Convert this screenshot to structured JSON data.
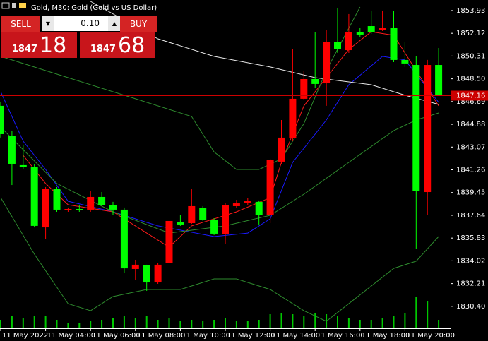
{
  "chart_data": {
    "type": "candlestick",
    "title": "Gold, M30:  Gold (Gold vs US Dollar)",
    "categories": [
      "11 May 2022",
      null,
      null,
      null,
      "11 May 04:00",
      null,
      null,
      null,
      "11 May 06:00",
      null,
      null,
      null,
      "11 May 08:00",
      null,
      null,
      null,
      "11 May 10:00",
      null,
      null,
      null,
      "11 May 12:00",
      null,
      null,
      null,
      "11 May 14:00",
      null,
      null,
      null,
      "11 May 16:00",
      null,
      null,
      null,
      "11 May 18:00",
      null,
      null,
      null,
      "11 May 20:00",
      null,
      null,
      null
    ],
    "open": [
      1846.35,
      1843.93,
      1841.63,
      1841.46,
      1836.68,
      1839.72,
      1838.09,
      1838.14,
      1838.09,
      1839.1,
      1838.48,
      1838.09,
      1833.37,
      1833.65,
      1832.3,
      1833.87,
      1837.13,
      1837.02,
      1838.2,
      1837.3,
      1836.12,
      1838.37,
      1838.65,
      1838.71,
      1837.64,
      1841.91,
      1843.76,
      1846.91,
      1848.48,
      1848.14,
      1851.4,
      1850.78,
      1852.19,
      1852.69,
      1852.41,
      1852.53,
      1850.0,
      1849.6,
      1839.49,
      1849.6
    ],
    "high": [
      1846.63,
      1844.38,
      1843.26,
      1841.74,
      1839.89,
      1839.89,
      1838.26,
      1838.48,
      1839.6,
      1839.49,
      1838.71,
      1838.26,
      1834.1,
      1833.71,
      1833.87,
      1837.47,
      1837.64,
      1839.77,
      1838.37,
      1837.41,
      1838.65,
      1838.87,
      1839.04,
      1838.82,
      1842.13,
      1845.22,
      1850.84,
      1849.15,
      1852.24,
      1852.41,
      1854.1,
      1853.65,
      1852.53,
      1853.93,
      1853.93,
      1853.93,
      1851.4,
      1850.28,
      1850.0,
      1850.95
    ],
    "low": [
      1843.82,
      1840.05,
      1841.29,
      1836.68,
      1835.78,
      1837.92,
      1837.92,
      1837.92,
      1837.92,
      1838.37,
      1837.64,
      1833.03,
      1832.47,
      1831.63,
      1832.19,
      1833.71,
      1836.8,
      1836.96,
      1837.19,
      1836.07,
      1835.39,
      1838.2,
      1838.48,
      1836.91,
      1837.02,
      1841.74,
      1843.54,
      1846.8,
      1847.75,
      1846.35,
      1850.56,
      1850.56,
      1851.85,
      1852.08,
      1852.3,
      1849.83,
      1849.44,
      1835.0,
      1837.64,
      1847.19
    ],
    "close": [
      1844.1,
      1841.74,
      1841.46,
      1836.8,
      1839.72,
      1838.09,
      1838.14,
      1838.09,
      1839.1,
      1838.48,
      1838.09,
      1833.42,
      1833.71,
      1832.3,
      1833.71,
      1837.19,
      1836.91,
      1838.37,
      1837.3,
      1836.18,
      1838.48,
      1838.59,
      1838.76,
      1837.64,
      1842.02,
      1843.82,
      1846.91,
      1848.48,
      1848.09,
      1851.4,
      1850.84,
      1852.19,
      1852.02,
      1852.24,
      1852.53,
      1850.0,
      1849.72,
      1839.6,
      1849.6,
      1847.16
    ],
    "up_color": "#ff0000",
    "down_color": "#00ff00",
    "volume": [
      12,
      18,
      15,
      18,
      18,
      12,
      8,
      8,
      10,
      12,
      15,
      18,
      15,
      18,
      12,
      15,
      10,
      12,
      10,
      12,
      15,
      10,
      10,
      12,
      20,
      22,
      20,
      18,
      22,
      20,
      18,
      15,
      12,
      12,
      15,
      18,
      22,
      45,
      38,
      12
    ],
    "volume_color": "#00c800",
    "lines": [
      {
        "color": "#1a1aff",
        "x": [
          0,
          2,
          4,
          6,
          10,
          14,
          19,
          22,
          24,
          26,
          29,
          31,
          34,
          36,
          39
        ],
        "values": [
          1847.47,
          1843.54,
          1841.29,
          1838.76,
          1837.92,
          1836.8,
          1835.95,
          1836.23,
          1837.36,
          1841.85,
          1845.22,
          1848.03,
          1850.28,
          1850.0,
          1846.63
        ]
      },
      {
        "color": "#ff1a1a",
        "x": [
          2,
          4,
          6,
          10,
          13,
          15,
          17,
          21,
          24,
          25,
          27,
          29,
          31,
          33,
          35,
          37,
          39
        ],
        "values": [
          1842.41,
          1840.17,
          1838.48,
          1837.92,
          1836.23,
          1835.11,
          1836.8,
          1837.92,
          1839.04,
          1841.85,
          1846.35,
          1848.59,
          1850.84,
          1852.24,
          1851.96,
          1849.15,
          1846.35
        ]
      },
      {
        "color": "#e8e8e8",
        "x": [
          8,
          14,
          19,
          24,
          28,
          33,
          36,
          39
        ],
        "values": [
          1854.66,
          1851.68,
          1850.28,
          1849.44,
          1848.59,
          1848.03,
          1847.19,
          1846.46
        ]
      },
      {
        "color": "#2e8b2e",
        "x": [
          0,
          6,
          12,
          17,
          19,
          21,
          23,
          25,
          27,
          29,
          31,
          32
        ],
        "values": [
          1850.28,
          1848.59,
          1846.91,
          1845.5,
          1842.69,
          1841.29,
          1841.29,
          1842.13,
          1844.94,
          1849.15,
          1852.53,
          1854.21
        ]
      },
      {
        "color": "#2e8b2e",
        "x": [
          0,
          5,
          10,
          15,
          20,
          24,
          27,
          31,
          35,
          37,
          39
        ],
        "values": [
          1844.66,
          1840.17,
          1837.92,
          1836.23,
          1836.8,
          1837.64,
          1839.32,
          1841.85,
          1844.38,
          1845.22,
          1845.78
        ]
      },
      {
        "color": "#2e8b2e",
        "x": [
          0,
          3,
          6,
          8,
          10,
          13,
          16,
          19,
          21,
          24,
          27,
          29,
          35,
          37,
          39
        ],
        "values": [
          1839.04,
          1834.55,
          1830.61,
          1830.05,
          1831.18,
          1831.74,
          1831.74,
          1832.58,
          1832.58,
          1831.74,
          1830.05,
          1829.21,
          1833.42,
          1833.99,
          1835.95
        ]
      }
    ],
    "current_price": 1847.16,
    "current_price_color": "#cc0000",
    "ylim": [
      1828.65,
      1854.77
    ],
    "yticks": [
      1853.93,
      1852.12,
      1850.31,
      {
        "value": 1848.5,
        "label": "1848.50"
      },
      1846.69,
      1844.88,
      1843.07,
      1841.26,
      1839.45,
      1837.64,
      1835.83,
      1834.02,
      1832.21,
      {
        "value": 1830.4,
        "label": "1830.40"
      }
    ],
    "grid": false
  },
  "trade_panel": {
    "sell": "SELL",
    "buy": "BUY",
    "lot": "0.10",
    "bid_big": "1847",
    "bid_small": "18",
    "ask_big": "1847",
    "ask_small": "68"
  }
}
